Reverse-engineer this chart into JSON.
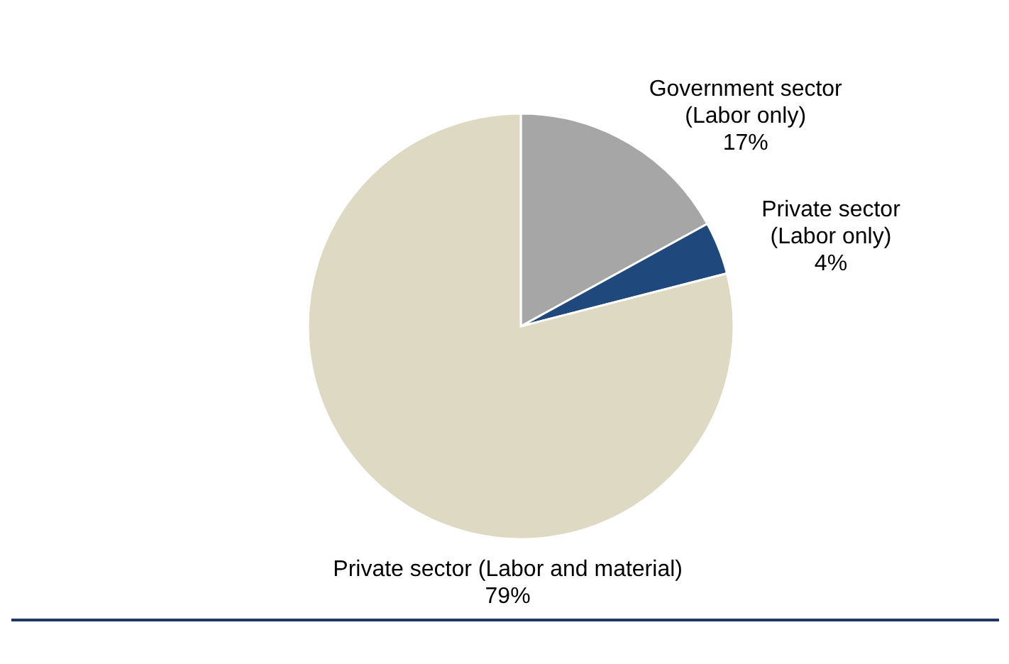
{
  "chart_data": {
    "type": "pie",
    "categories": [
      "Government sector\n(Labor only)",
      "Private sector\n(Labor only)",
      "Private sector (Labor and material)"
    ],
    "values": [
      17,
      4,
      79
    ],
    "value_labels": [
      "17%",
      "4%",
      "79%"
    ],
    "colors": [
      "#a6a6a6",
      "#1f497d",
      "#ddd9c3"
    ]
  }
}
